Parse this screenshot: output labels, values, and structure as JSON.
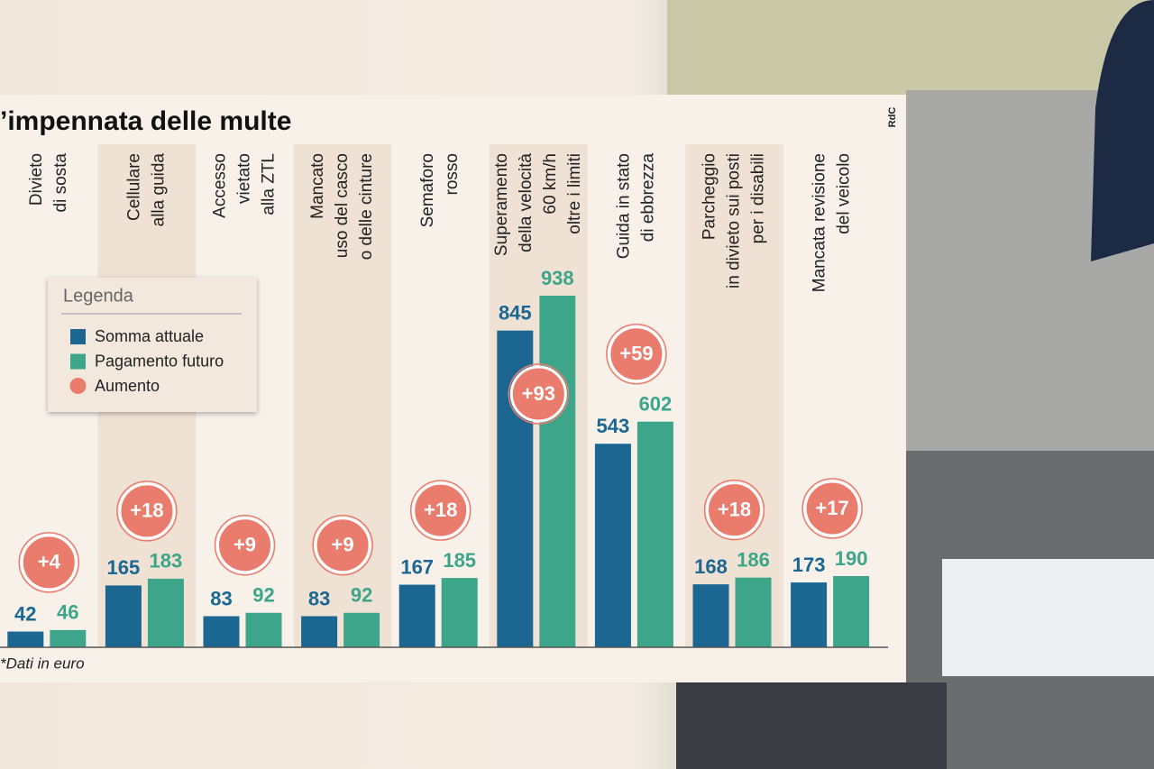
{
  "title": "’impennata delle multe",
  "logo": "RdC",
  "note": "*Dati in euro",
  "chart_data": {
    "type": "bar",
    "legend_title": "Legenda",
    "categories": [
      [
        "Divieto",
        "di sosta"
      ],
      [
        "Cellulare",
        "alla guida"
      ],
      [
        "Accesso",
        "vietato",
        "alla ZTL"
      ],
      [
        "Mancato",
        "uso del casco",
        "o delle cinture"
      ],
      [
        "Semaforo",
        "rosso"
      ],
      [
        "Superamento",
        "della velocità",
        "60 km/h",
        "oltre i limiti"
      ],
      [
        "Guida in stato",
        "di ebbrezza"
      ],
      [
        "Parcheggio",
        "in divieto sui posti",
        "per i disabili"
      ],
      [
        "Mancata revisione",
        "del veicolo"
      ]
    ],
    "series": [
      {
        "name": "Somma attuale",
        "color": "#1b6792",
        "values": [
          42,
          165,
          83,
          83,
          167,
          845,
          543,
          168,
          173
        ]
      },
      {
        "name": "Pagamento futuro",
        "color": "#3da68a",
        "values": [
          46,
          183,
          92,
          92,
          185,
          938,
          602,
          186,
          190
        ]
      },
      {
        "name": "Aumento",
        "color": "#e97c6c",
        "values": [
          4,
          18,
          9,
          9,
          18,
          93,
          59,
          18,
          17
        ],
        "value_labels": [
          "+4",
          "+18",
          "+9",
          "+9",
          "+18",
          "+93",
          "+59",
          "+18",
          "+17"
        ]
      }
    ]
  }
}
